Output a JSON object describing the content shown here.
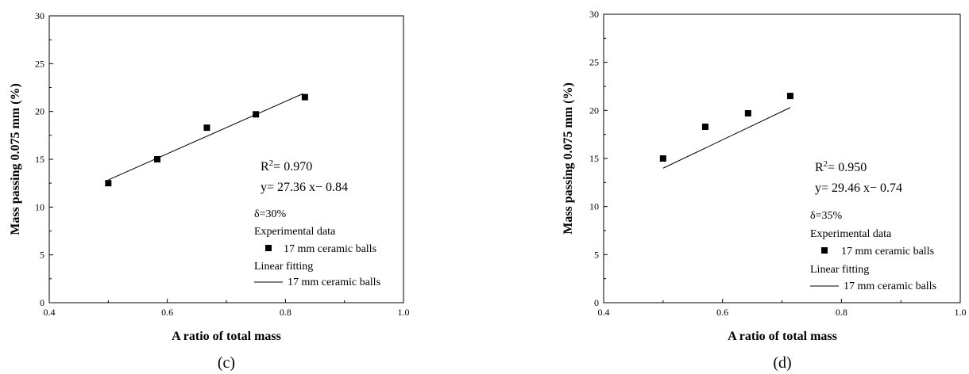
{
  "chart_data": [
    {
      "type": "scatter",
      "panel_label": "(c)",
      "xlabel": "A ratio  of total mass",
      "ylabel": "Mass passing 0.075 mm (%)",
      "xlim": [
        0.4,
        1.0
      ],
      "ylim": [
        0,
        30
      ],
      "xticks": [
        "0.4",
        "0.6",
        "0.8",
        "1.0"
      ],
      "yticks": [
        "0",
        "5",
        "10",
        "15",
        "20",
        "25",
        "30"
      ],
      "points": [
        [
          0.5,
          12.5
        ],
        [
          0.583,
          15.0
        ],
        [
          0.667,
          18.3
        ],
        [
          0.75,
          19.7
        ],
        [
          0.833,
          21.5
        ]
      ],
      "fit": {
        "slope": 27.36,
        "intercept": -0.84,
        "x_range": [
          0.5,
          0.83
        ]
      },
      "r2_label": "R",
      "r2_value": "= 0.970",
      "equation": "y= 27.36 x− 0.84",
      "delta": "δ=30%",
      "legend": {
        "scatter_title": "Experimental data",
        "scatter_name": "17 mm ceramic balls",
        "line_title": "Linear fitting",
        "line_name": "17 mm ceramic balls"
      },
      "colors": {
        "marker": "#000000",
        "line": "#000000"
      }
    },
    {
      "type": "scatter",
      "panel_label": "(d)",
      "xlabel": "A ratio  of total mass",
      "ylabel": "Mass passing 0.075 mm (%)",
      "xlim": [
        0.4,
        1.0
      ],
      "ylim": [
        0,
        30
      ],
      "xticks": [
        "0.4",
        "0.6",
        "0.8",
        "1.0"
      ],
      "yticks": [
        "0",
        "5",
        "10",
        "15",
        "20",
        "25",
        "30"
      ],
      "points": [
        [
          0.5,
          15.0
        ],
        [
          0.571,
          18.3
        ],
        [
          0.643,
          19.7
        ],
        [
          0.714,
          21.5
        ]
      ],
      "fit": {
        "slope": 29.46,
        "intercept": -0.74,
        "x_range": [
          0.5,
          0.714
        ]
      },
      "r2_label": "R",
      "r2_value": "= 0.950",
      "equation": "y= 29.46 x− 0.74",
      "delta": "δ=35%",
      "legend": {
        "scatter_title": "Experimental data",
        "scatter_name": "17 mm ceramic balls",
        "line_title": "Linear fitting",
        "line_name": "17 mm ceramic balls"
      },
      "colors": {
        "marker": "#000000",
        "line": "#000000"
      }
    }
  ]
}
